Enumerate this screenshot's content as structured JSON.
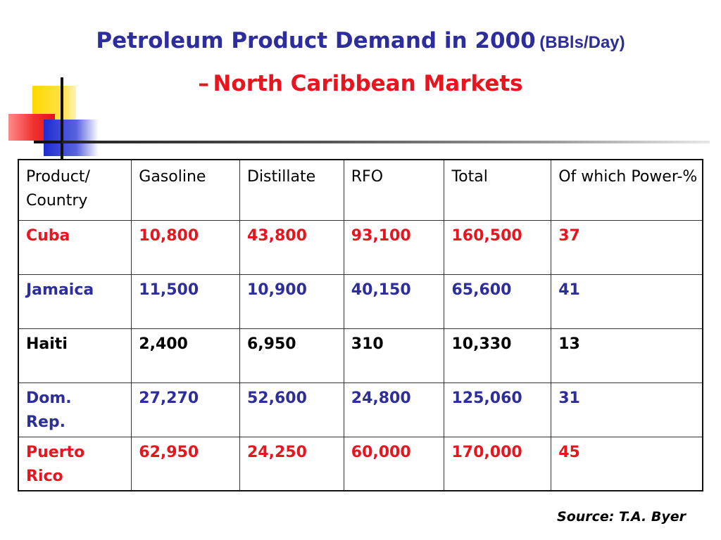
{
  "title": {
    "line1": "Petroleum Product Demand in 2000",
    "unit": "(BBls/Day)",
    "dash": "–",
    "line2": "North Caribbean Markets"
  },
  "colors": {
    "title_blue": "#2d2d9c",
    "accent_red": "#e8141e"
  },
  "table": {
    "headers": [
      "Product/ Country",
      "Gasoline",
      "Distillate",
      "RFO",
      "Total",
      "Of which Power-%"
    ],
    "rows": [
      {
        "country": "Cuba",
        "color": "red",
        "cells": [
          "10,800",
          "43,800",
          "93,100",
          "160,500",
          "37"
        ]
      },
      {
        "country": "Jamaica",
        "color": "blue",
        "cells": [
          "11,500",
          "10,900",
          "40,150",
          "65,600",
          "41"
        ]
      },
      {
        "country": "Haiti",
        "color": "black",
        "cells": [
          "2,400",
          "6,950",
          "310",
          "10,330",
          "13"
        ]
      },
      {
        "country": "Dom. Rep.",
        "color": "blue",
        "cells": [
          "27,270",
          "52,600",
          "24,800",
          "125,060",
          "31"
        ]
      },
      {
        "country": "Puerto Rico",
        "color": "red",
        "cells": [
          "62,950",
          "24,250",
          "60,000",
          "170,000",
          "45"
        ]
      }
    ]
  },
  "source": "Source: T.A. Byer"
}
